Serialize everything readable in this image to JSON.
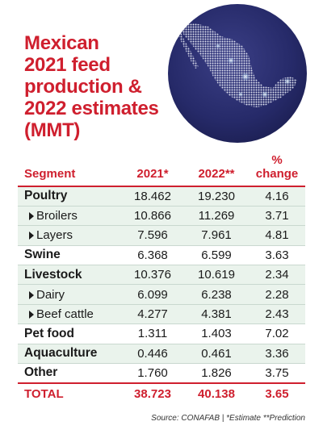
{
  "title_lines": [
    "Mexican",
    "2021 feed",
    "production &",
    "2022 estimates",
    "(MMT)"
  ],
  "source": "Source: CONAFAB | *Estimate **Prediction",
  "colors": {
    "accent": "#cf1f2e",
    "row_shade": "#eaf3ec",
    "map_bg": "#262a69"
  },
  "chart_data": {
    "type": "table",
    "title": "Mexican 2021 feed production & 2022 estimates (MMT)",
    "columns": [
      "Segment",
      "2021*",
      "2022**",
      "% change"
    ],
    "rows": [
      {
        "segment": "Poultry",
        "y2021": "18.462",
        "y2022": "19.230",
        "change": "4.16",
        "level": "main",
        "shade": true
      },
      {
        "segment": "Broilers",
        "y2021": "10.866",
        "y2022": "11.269",
        "change": "3.71",
        "level": "sub",
        "shade": true
      },
      {
        "segment": "Layers",
        "y2021": "7.596",
        "y2022": "7.961",
        "change": "4.81",
        "level": "sub",
        "shade": true
      },
      {
        "segment": "Swine",
        "y2021": "6.368",
        "y2022": "6.599",
        "change": "3.63",
        "level": "main",
        "shade": false
      },
      {
        "segment": "Livestock",
        "y2021": "10.376",
        "y2022": "10.619",
        "change": "2.34",
        "level": "main",
        "shade": true
      },
      {
        "segment": "Dairy",
        "y2021": "6.099",
        "y2022": "6.238",
        "change": "2.28",
        "level": "sub",
        "shade": true
      },
      {
        "segment": "Beef cattle",
        "y2021": "4.277",
        "y2022": "4.381",
        "change": "2.43",
        "level": "sub",
        "shade": true
      },
      {
        "segment": "Pet food",
        "y2021": "1.311",
        "y2022": "1.403",
        "change": "7.02",
        "level": "main",
        "shade": false
      },
      {
        "segment": "Aquaculture",
        "y2021": "0.446",
        "y2022": "0.461",
        "change": "3.36",
        "level": "main",
        "shade": true
      },
      {
        "segment": "Other",
        "y2021": "1.760",
        "y2022": "1.826",
        "change": "3.75",
        "level": "main",
        "shade": false
      }
    ],
    "total": {
      "segment": "TOTAL",
      "y2021": "38.723",
      "y2022": "40.138",
      "change": "3.65"
    }
  }
}
